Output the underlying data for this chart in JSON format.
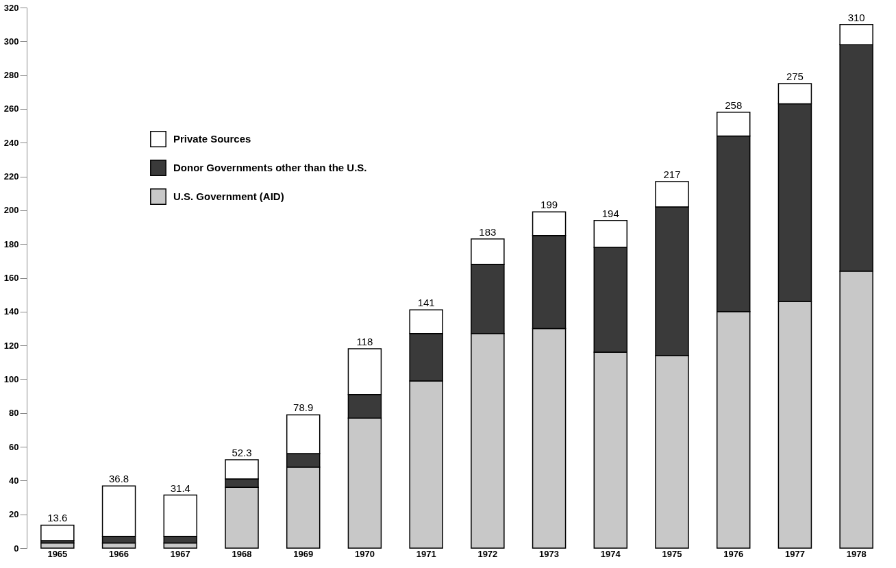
{
  "chart_data": {
    "type": "bar",
    "stacked": true,
    "categories": [
      "1965",
      "1966",
      "1967",
      "1968",
      "1969",
      "1970",
      "1971",
      "1972",
      "1973",
      "1974",
      "1975",
      "1976",
      "1977",
      "1978"
    ],
    "series": [
      {
        "name": "U.S. Government (AID)",
        "color": "#c8c8c8",
        "values": [
          3,
          3,
          3,
          36,
          48,
          77,
          99,
          127,
          130,
          116,
          114,
          140,
          146,
          164
        ]
      },
      {
        "name": "Donor Governments other than the U.S.",
        "color": "#3a3a3a",
        "values": [
          1.5,
          4,
          4,
          5,
          8,
          14,
          28,
          41,
          55,
          62,
          88,
          104,
          117,
          134
        ]
      },
      {
        "name": "Private Sources",
        "color": "#ffffff",
        "values": [
          9.1,
          29.8,
          24.4,
          11.3,
          22.9,
          27,
          14,
          15,
          14,
          16,
          15,
          14,
          12,
          12
        ]
      }
    ],
    "totals": [
      "13.6",
      "36.8",
      "31.4",
      "52.3",
      "78.9",
      "118",
      "141",
      "183",
      "199",
      "194",
      "217",
      "258",
      "275",
      "310"
    ],
    "ylim": [
      0,
      320
    ],
    "yticks": [
      0,
      20,
      40,
      60,
      80,
      100,
      120,
      140,
      160,
      180,
      200,
      220,
      240,
      260,
      280,
      300,
      320
    ],
    "grid": false,
    "legend": "top left"
  }
}
